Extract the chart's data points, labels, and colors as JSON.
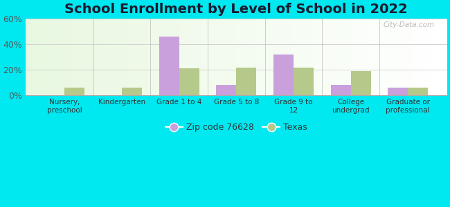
{
  "title": "School Enrollment by Level of School in 2022",
  "categories": [
    "Nursery,\npreschool",
    "Kindergarten",
    "Grade 1 to 4",
    "Grade 5 to 8",
    "Grade 9 to\n12",
    "College\nundergrad",
    "Graduate or\nprofessional"
  ],
  "zip_values": [
    0,
    0,
    46,
    8,
    32,
    8,
    6
  ],
  "texas_values": [
    6,
    6,
    21,
    22,
    22,
    19,
    6
  ],
  "zip_color": "#c9a0dc",
  "texas_color": "#b5c98a",
  "background_color": "#00e8f0",
  "ylim": [
    0,
    60
  ],
  "yticks": [
    0,
    20,
    40,
    60
  ],
  "ytick_labels": [
    "0%",
    "20%",
    "40%",
    "60%"
  ],
  "legend_zip_label": "Zip code 76628",
  "legend_texas_label": "Texas",
  "bar_width": 0.35,
  "title_fontsize": 14,
  "watermark": "City-Data.com"
}
